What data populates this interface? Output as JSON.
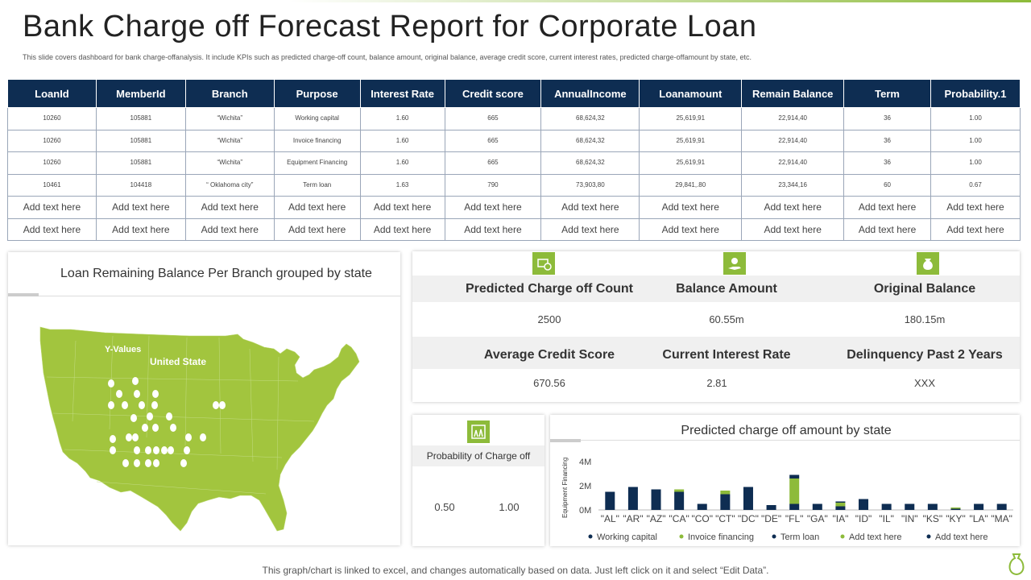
{
  "header": {
    "title": "Bank Charge off Forecast Report for Corporate Loan",
    "subtitle": "This slide covers dashboard for bank charge-offanalysis. It include KPIs  such as predicted charge-off count, balance amount, original balance, average credit score, current interest rates, predicted charge-offamount by state, etc."
  },
  "table": {
    "headers": [
      "LoanId",
      "MemberId",
      "Branch",
      "Purpose",
      "Interest Rate",
      "Credit score",
      "AnnualIncome",
      "Loanamount",
      "Remain Balance",
      "Term",
      "Probability.1"
    ],
    "rows": [
      [
        "10260",
        "105881",
        "“Wichita”",
        "Working capital",
        "1.60",
        "665",
        "68,624,32",
        "25,619,91",
        "22,914,40",
        "36",
        "1.00"
      ],
      [
        "10260",
        "105881",
        "“Wichita”",
        "Invoice financing",
        "1.60",
        "665",
        "68,624,32",
        "25,619,91",
        "22,914,40",
        "36",
        "1.00"
      ],
      [
        "10260",
        "105881",
        "“Wichita”",
        "Equipment Financing",
        "1.60",
        "665",
        "68,624,32",
        "25,619,91",
        "22,914,40",
        "36",
        "1.00"
      ],
      [
        "10461",
        "104418",
        "“ Oklahoma city”",
        "Term loan",
        "1.63",
        "790",
        "73,903,80",
        "29,841,.80",
        "23,344,16",
        "60",
        "0.67"
      ],
      [
        "Add text here",
        "Add text here",
        "Add text here",
        "Add text here",
        "Add text here",
        "Add text here",
        "Add text here",
        "Add text here",
        "Add text here",
        "Add text here",
        "Add text here"
      ],
      [
        "Add text here",
        "Add text here",
        "Add text here",
        "Add text here",
        "Add text here",
        "Add text here",
        "Add text here",
        "Add text here",
        "Add text here",
        "Add text here",
        "Add text here"
      ]
    ]
  },
  "map": {
    "title": "Loan Remaining Balance Per Branch grouped by state",
    "y_values_label": "Y-Values",
    "country_label": "United State"
  },
  "kpis": {
    "predicted_count_label": "Predicted Charge off Count",
    "predicted_count_value": "2500",
    "balance_label": "Balance Amount",
    "balance_value": "60.55m",
    "original_label": "Original Balance",
    "original_value": "180.15m",
    "credit_label": "Average Credit Score",
    "credit_value": "670.56",
    "interest_label": "Current Interest Rate",
    "interest_value": "2.81",
    "delinquency_label": "Delinquency Past 2 Years",
    "delinquency_value": "XXX"
  },
  "probability": {
    "label": "Probability of Charge off",
    "value_1": "0.50",
    "value_2": "1.00"
  },
  "chart_data": {
    "type": "bar",
    "title": "Predicted charge off amount by state",
    "ylabel": "Equipment Financing",
    "ylim": [
      0,
      4
    ],
    "ytick_labels": [
      "0M",
      "2M",
      "4M"
    ],
    "ytick_values": [
      0,
      2,
      4
    ],
    "categories": [
      "\"AL\"",
      "\"AR\"",
      "\"AZ\"",
      "\"CA\"",
      "\"CO\"",
      "\"CT\"",
      "\"DC\"",
      "\"DE\"",
      "\"FL\"",
      "\"GA\"",
      "\"IA\"",
      "\"ID\"",
      "\"IL\"",
      "\"IN\"",
      "\"KS\"",
      "\"KY\"",
      "\"LA\"",
      "\"MA\""
    ],
    "series": [
      {
        "name": "Working capital",
        "color": "#0e2d52",
        "values": [
          1.5,
          1.9,
          1.7,
          1.5,
          0.5,
          1.3,
          1.7,
          0.4,
          0.5,
          0.5,
          0.3,
          0.9,
          0.5,
          0.5,
          0.5,
          0.1,
          0.5,
          0.5
        ]
      },
      {
        "name": "Invoice financing",
        "color": "#8dbb3a",
        "values": [
          0.0,
          0.0,
          0.0,
          0.2,
          0.0,
          0.3,
          0.0,
          0.0,
          2.1,
          0.0,
          0.3,
          0.0,
          0.0,
          0.0,
          0.0,
          0.1,
          0.0,
          0.0
        ]
      },
      {
        "name": "Term loan",
        "color": "#0e2d52",
        "values": [
          0.0,
          0.0,
          0.0,
          0.0,
          0.0,
          0.0,
          0.2,
          0.0,
          0.3,
          0.0,
          0.1,
          0.0,
          0.0,
          0.0,
          0.0,
          0.0,
          0.0,
          0.0
        ]
      },
      {
        "name": "Add text here",
        "color": "#8dbb3a",
        "values": [
          0,
          0,
          0,
          0,
          0,
          0,
          0,
          0,
          0,
          0,
          0,
          0,
          0,
          0,
          0,
          0,
          0,
          0
        ]
      },
      {
        "name": "Add text here",
        "color": "#0e2d52",
        "values": [
          0,
          0,
          0,
          0,
          0,
          0,
          0,
          0,
          0,
          0,
          0,
          0,
          0,
          0,
          0,
          0,
          0,
          0
        ]
      }
    ],
    "legend_position": "bottom"
  },
  "footer": {
    "note": "This graph/chart is linked to excel,  and changes automatically based on data. Just left click on it and select “Edit Data”."
  },
  "colors": {
    "navy": "#0e2d52",
    "green": "#8dbb3a",
    "band": "#f0f0f0"
  }
}
